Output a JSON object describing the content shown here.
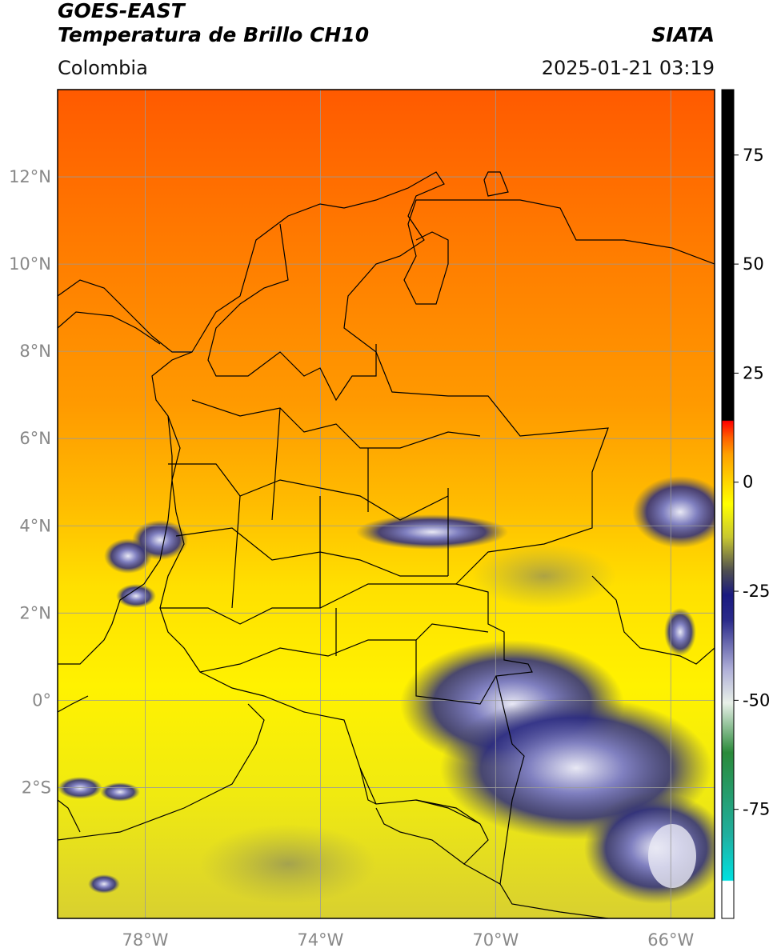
{
  "header": {
    "satellite": "GOES-EAST",
    "product": "Temperatura de Brillo CH10",
    "organization": "SIATA",
    "region": "Colombia",
    "datetime": "2025-01-21 03:19"
  },
  "map": {
    "extent": {
      "lon_min": -80,
      "lon_max": -65,
      "lat_min": -5,
      "lat_max": 14
    },
    "lat_ticks": [
      {
        "value": 12,
        "label": "12°N"
      },
      {
        "value": 10,
        "label": "10°N"
      },
      {
        "value": 8,
        "label": "8°N"
      },
      {
        "value": 6,
        "label": "6°N"
      },
      {
        "value": 4,
        "label": "4°N"
      },
      {
        "value": 2,
        "label": "2°N"
      },
      {
        "value": 0,
        "label": "0°"
      },
      {
        "value": -2,
        "label": "2°S"
      }
    ],
    "lon_ticks": [
      {
        "value": -78,
        "label": "78°W"
      },
      {
        "value": -74,
        "label": "74°W"
      },
      {
        "value": -70,
        "label": "70°W"
      },
      {
        "value": -66,
        "label": "66°W"
      }
    ],
    "grid": true
  },
  "colorbar": {
    "min": -100,
    "max": 90,
    "ticks": [
      {
        "value": 75,
        "label": "75"
      },
      {
        "value": 50,
        "label": "50"
      },
      {
        "value": 25,
        "label": "25"
      },
      {
        "value": 0,
        "label": "0"
      },
      {
        "value": -25,
        "label": "-25"
      },
      {
        "value": -50,
        "label": "-50"
      },
      {
        "value": -75,
        "label": "-75"
      }
    ]
  }
}
